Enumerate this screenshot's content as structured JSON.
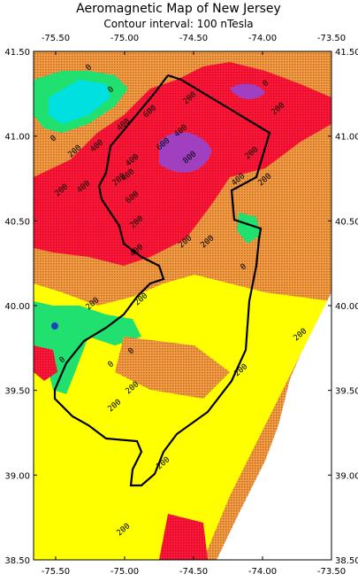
{
  "map": {
    "title": "Aeromagnetic Map of New Jersey",
    "subtitle": "Contour interval: 100 nTesla",
    "xlim": [
      -75.66,
      -73.5
    ],
    "ylim": [
      38.5,
      41.5
    ],
    "xticks": [
      {
        "value": -75.5,
        "label": "-75.50"
      },
      {
        "value": -75.0,
        "label": "-75.00"
      },
      {
        "value": -74.5,
        "label": "-74.50"
      },
      {
        "value": -74.0,
        "label": "-74.00"
      },
      {
        "value": -73.5,
        "label": "-73.50"
      }
    ],
    "yticks": [
      {
        "value": 41.5,
        "label": "41.50"
      },
      {
        "value": 41.0,
        "label": "41.00"
      },
      {
        "value": 40.5,
        "label": "40.50"
      },
      {
        "value": 40.0,
        "label": "40.00"
      },
      {
        "value": 39.5,
        "label": "39.50"
      },
      {
        "value": 39.0,
        "label": "39.00"
      },
      {
        "value": 38.5,
        "label": "38.50"
      }
    ],
    "contour_labels": [
      "0",
      "0",
      "0",
      "200",
      "400",
      "200",
      "400",
      "400",
      "600",
      "400",
      "200",
      "400",
      "600",
      "600",
      "400",
      "800",
      "200",
      "200",
      "400",
      "200",
      "200",
      "0",
      "400",
      "200",
      "200",
      "0",
      "200",
      "200",
      "0",
      "0",
      "200",
      "200",
      "200",
      "0",
      "200",
      "200",
      "200",
      "200"
    ]
  }
}
